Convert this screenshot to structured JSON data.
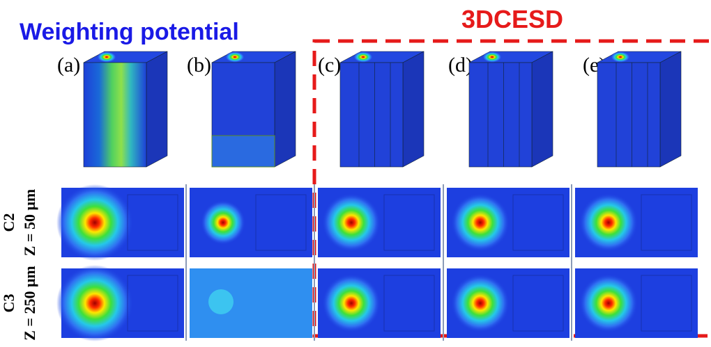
{
  "title": "Weighting potential",
  "group_label": "3DCESD",
  "panels": [
    "(a)",
    "(b)",
    "(c)",
    "(d)",
    "(e)"
  ],
  "rows": [
    {
      "line1": "C2",
      "line2": "Z = 50 μm"
    },
    {
      "line1": "C3",
      "line2": "Z = 250 μm"
    }
  ]
}
